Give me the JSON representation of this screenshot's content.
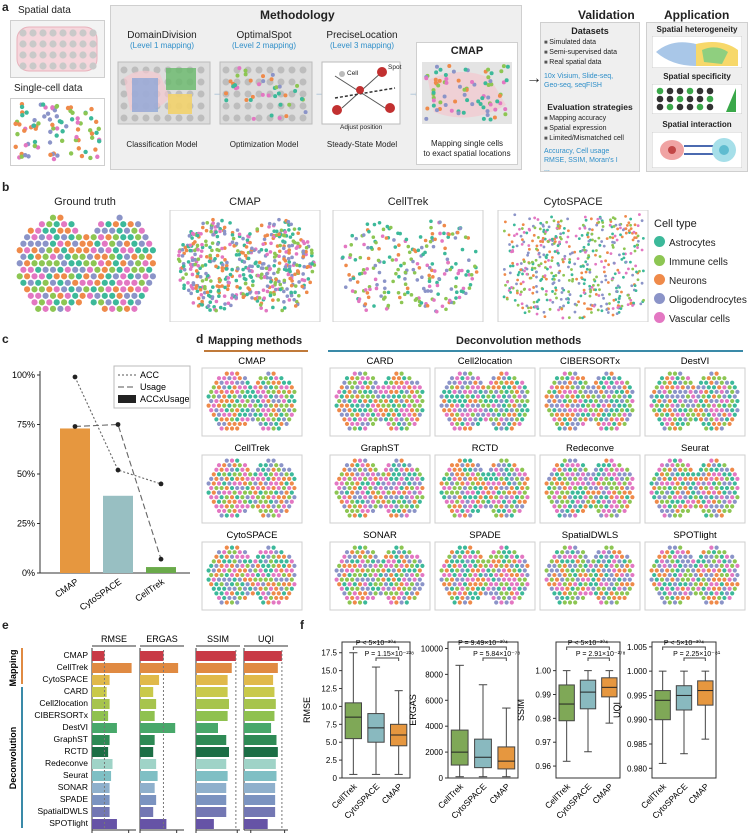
{
  "panel_letters": {
    "a": "a",
    "b": "b",
    "c": "c",
    "d": "d",
    "e": "e",
    "f": "f"
  },
  "panel_a": {
    "spatial_data": "Spatial data",
    "single_cell_data": "Single-cell data",
    "methodology_title": "Methodology",
    "steps": [
      {
        "name": "DomainDivision",
        "level": "(Level 1 mapping)",
        "model": "Classification Model"
      },
      {
        "name": "OptimalSpot",
        "level": "(Level 2 mapping)",
        "model": "Optimization Model"
      },
      {
        "name": "PreciseLocation",
        "level": "(Level 3 mapping)",
        "model": "Steady-State Model"
      }
    ],
    "cmap_title": "CMAP",
    "cmap_caption_1": "Mapping single cells",
    "cmap_caption_2": "to exact spatial locations",
    "precise_cell": "Cell",
    "precise_spot": "Spot",
    "precise_adjust": "Adjust position",
    "validation_title": "Validation",
    "datasets_title": "Datasets",
    "datasets": [
      "Simulated data",
      "Semi-supervised data",
      "Real spatial data"
    ],
    "datasets_blue_1": "10x Visium, Slide-seq,",
    "datasets_blue_2": "Geo-seq, seqFISH",
    "eval_title": "Evaluation strategies",
    "eval": [
      "Mapping accuracy",
      "Spatial expression",
      "Limited/Mismatched cell"
    ],
    "eval_blue_1": "Accuracy, Cell usage",
    "eval_blue_2": "RMSE, SSIM, Moran's I",
    "eval_blue_3": "...",
    "application_title": "Application",
    "apps": [
      "Spatial heterogeneity",
      "Spatial specificity",
      "Spatial interaction"
    ]
  },
  "panel_b": {
    "titles": [
      "Ground truth",
      "CMAP",
      "CellTrek",
      "CytoSPACE"
    ],
    "legend_title": "Cell type",
    "legend": [
      {
        "name": "Astrocytes",
        "color": "#3cb99a"
      },
      {
        "name": "Immune cells",
        "color": "#8dc653"
      },
      {
        "name": "Neurons",
        "color": "#ef8a4a"
      },
      {
        "name": "Oligodendrocytes",
        "color": "#8b94c8"
      },
      {
        "name": "Vascular cells",
        "color": "#e377c2"
      }
    ]
  },
  "chart_data": [
    {
      "id": "c",
      "type": "bar",
      "categories": [
        "CMAP",
        "CytoSPACE",
        "CellTrek"
      ],
      "values": [
        73,
        39,
        3
      ],
      "colors": [
        "#e6973f",
        "#98bfc2",
        "#6aaa4a"
      ],
      "series": [
        {
          "name": "ACC",
          "values": [
            99,
            52,
            45
          ],
          "style": "dotted"
        },
        {
          "name": "Usage",
          "values": [
            74,
            75,
            7
          ],
          "style": "dashed"
        }
      ],
      "bar_series_name": "ACCxUsage",
      "yticks": [
        "0%",
        "25%",
        "50%",
        "75%",
        "100%"
      ],
      "ylim": [
        0,
        100
      ]
    },
    {
      "id": "e",
      "type": "bar",
      "orientation": "horizontal",
      "groups": [
        "Mapping",
        "Deconvolution"
      ],
      "categories": [
        "CMAP",
        "CellTrek",
        "CytoSPACE",
        "CARD",
        "Cell2location",
        "CIBERSORTx",
        "DestVI",
        "GraphST",
        "RCTD",
        "Redeconve",
        "Seurat",
        "SONAR",
        "SPADE",
        "SpatialDWLS",
        "SPOTlight"
      ],
      "colors": [
        "#c83a46",
        "#e08a42",
        "#e0b94a",
        "#c9c94a",
        "#a7c44d",
        "#8fc14f",
        "#48a86a",
        "#2e8a55",
        "#1c6e45",
        "#9fd3c7",
        "#7fbfc4",
        "#8fb0cc",
        "#7b93c0",
        "#7377b3",
        "#6653a6"
      ],
      "metrics": [
        {
          "name": "RMSE",
          "ticks": [
            "0",
            "25"
          ],
          "xlim": [
            0,
            30
          ],
          "values": [
            8.5,
            27,
            12,
            10,
            12,
            11,
            17,
            12,
            11,
            14,
            13,
            12,
            12,
            12,
            17
          ]
        },
        {
          "name": "ERGAS",
          "ticks": [
            "0",
            "2500"
          ],
          "xlim": [
            0,
            3000
          ],
          "values": [
            1600,
            2600,
            1300,
            900,
            1100,
            1000,
            2400,
            1000,
            900,
            1100,
            1200,
            1000,
            1100,
            900,
            1800
          ]
        },
        {
          "name": "SSIM",
          "ticks": [
            "0.7",
            "1.0"
          ],
          "xlim": [
            0.7,
            1.02
          ],
          "values": [
            0.99,
            0.96,
            0.93,
            0.93,
            0.94,
            0.93,
            0.86,
            0.92,
            0.94,
            0.92,
            0.93,
            0.92,
            0.92,
            0.92,
            0.83
          ]
        },
        {
          "name": "UQI",
          "ticks": [
            "0.95",
            "1.0"
          ],
          "xlim": [
            0.94,
            1.005
          ],
          "values": [
            0.996,
            0.99,
            0.983,
            0.985,
            0.987,
            0.985,
            0.98,
            0.988,
            0.99,
            0.987,
            0.988,
            0.986,
            0.986,
            0.986,
            0.975
          ]
        }
      ]
    },
    {
      "id": "f",
      "type": "box",
      "categories": [
        "CellTrek",
        "CytoSPACE",
        "CMAP"
      ],
      "colors": [
        "#7fa857",
        "#89b9bf",
        "#e6973f"
      ],
      "panels": [
        {
          "ylabel": "RMSE",
          "yticks": [
            "0",
            "2.5",
            "5.0",
            "7.5",
            "10.0",
            "12.5",
            "15.0",
            "17.5"
          ],
          "ylim": [
            0,
            19
          ],
          "boxes": [
            [
              0.5,
              5.5,
              8.5,
              10.5,
              17.5
            ],
            [
              0.5,
              5,
              7,
              9,
              15.5
            ],
            [
              0.5,
              4.5,
              6,
              7.5,
              12.2
            ]
          ],
          "p1": "P < 5×10⁻³⁰⁴",
          "p2": "P = 1.15×10⁻²³⁸"
        },
        {
          "ylabel": "ERGAS",
          "yticks": [
            "0",
            "2000",
            "4000",
            "6000",
            "8000",
            "10000"
          ],
          "ylim": [
            0,
            10500
          ],
          "boxes": [
            [
              100,
              1000,
              2000,
              3700,
              8700
            ],
            [
              100,
              800,
              1600,
              3000,
              7200
            ],
            [
              100,
              700,
              1300,
              2400,
              5400
            ]
          ],
          "p1": "P = 9.49×10⁻³⁰⁴",
          "p2": "P = 5.84×10⁻⁷⁸"
        },
        {
          "ylabel": "SSIM",
          "yticks": [
            "0.96",
            "0.97",
            "0.98",
            "0.99",
            "1.00"
          ],
          "ylim": [
            0.955,
            1.012
          ],
          "boxes": [
            [
              0.962,
              0.979,
              0.986,
              0.994,
              1.0
            ],
            [
              0.966,
              0.984,
              0.991,
              0.996,
              1.0
            ],
            [
              0.978,
              0.989,
              0.993,
              0.997,
              1.0
            ]
          ],
          "p1": "P < 5×10⁻³⁰⁴",
          "p2": "P = 2.91×10⁻²⁷⁸"
        },
        {
          "ylabel": "UQI",
          "yticks": [
            "0.980",
            "0.985",
            "0.990",
            "0.995",
            "1.000",
            "1.005"
          ],
          "ylim": [
            0.978,
            1.006
          ],
          "boxes": [
            [
              0.981,
              0.99,
              0.994,
              0.996,
              1.0
            ],
            [
              0.983,
              0.992,
              0.995,
              0.997,
              1.0
            ],
            [
              0.986,
              0.993,
              0.996,
              0.998,
              1.0
            ]
          ],
          "p1": "P < 5×10⁻³⁰⁴",
          "p2": "P = 2.25×10⁻⁸¹"
        }
      ]
    }
  ],
  "panel_d": {
    "mapping_header": "Mapping methods",
    "deconv_header": "Deconvolution methods",
    "mapping_methods": [
      "CMAP",
      "CellTrek",
      "CytoSPACE"
    ],
    "deconv_methods": [
      "CARD",
      "Cell2location",
      "CIBERSORTx",
      "DestVI",
      "GraphST",
      "RCTD",
      "Redeconve",
      "Seurat",
      "SONAR",
      "SPADE",
      "SpatialDWLS",
      "SPOTlight"
    ]
  },
  "panel_e_groups": {
    "mapping": "Mapping",
    "deconvolution": "Deconvolution"
  }
}
